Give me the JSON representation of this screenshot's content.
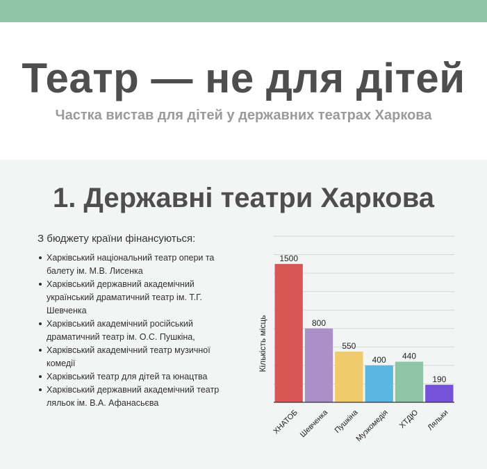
{
  "header": {
    "title": "Театр — не для дітей",
    "subtitle": "Частка вистав для дітей у державних театрах Харкова"
  },
  "section": {
    "title": "1. Державні театри Харкова",
    "list_heading": "З бюджету країни фінансуються:",
    "theatres": [
      "Харківський національний театр опери та балету  ім. М.В. Лисенка",
      "Харківський державний академічний український драматичний театр ім. Т.Г. Шевченка",
      "Харківський академічний російський драматичний театр ім. О.С. Пушкіна,",
      "Харківський академічний театр музичної комедії",
      "Харківський театр для дітей та юнацтва",
      "Харківський державний академічний театр ляльок ім. В.А. Афанасьєва"
    ]
  },
  "colors": {
    "topbar": "#90c4a7",
    "content_bg": "#f2f5f3",
    "title": "#4e4e4e",
    "subtitle": "#9a9a9a"
  },
  "chart_data": {
    "type": "bar",
    "categories": [
      "ХНАТОБ",
      "Шевченка",
      "Пушкіна",
      "Музкомедія",
      "ХТДЮ",
      "Ляльки"
    ],
    "values": [
      1500,
      800,
      550,
      400,
      440,
      190
    ],
    "colors": [
      "#d95656",
      "#ab90c8",
      "#f0cb6b",
      "#5ab6e2",
      "#90c4a7",
      "#7552d8"
    ],
    "ylabel": "Кількість місць",
    "xlabel": "",
    "ylim": [
      0,
      1800
    ],
    "grid": true
  }
}
